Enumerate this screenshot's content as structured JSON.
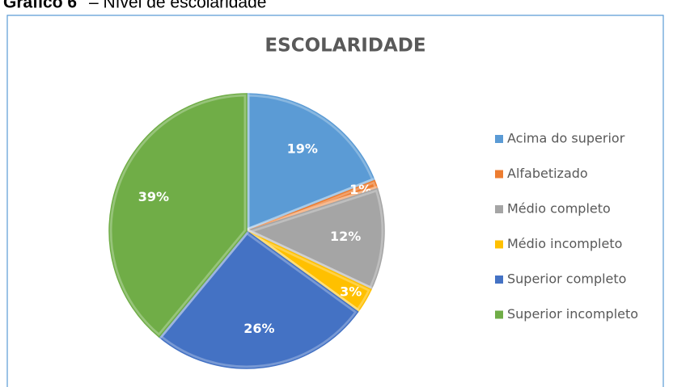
{
  "caption": {
    "label": "Gráfico 6",
    "text": "– Nível de escolaridade"
  },
  "chart_data": {
    "type": "pie",
    "title": "ESCOLARIDADE",
    "categories": [
      "Acima do superior",
      "Alfabetizado",
      "Médio completo",
      "Médio incompleto",
      "Superior completo",
      "Superior incompleto"
    ],
    "values": [
      19,
      1,
      12,
      3,
      26,
      39
    ],
    "value_labels": [
      "19%",
      "1%",
      "12%",
      "3%",
      "26%",
      "39%"
    ],
    "colors": [
      "#5b9bd5",
      "#ed7d31",
      "#a5a5a5",
      "#ffc000",
      "#4472c4",
      "#70ad47"
    ],
    "legend": "right"
  }
}
